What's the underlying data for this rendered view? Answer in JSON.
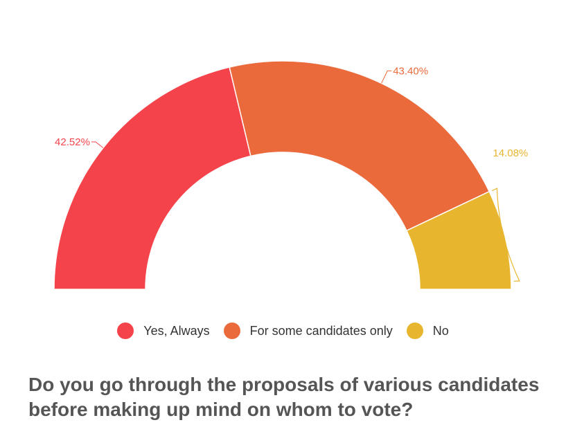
{
  "chart_data": {
    "type": "pie",
    "variant": "semi-donut",
    "title": "Do you go through the proposals of various candidates before making up mind on whom to vote?",
    "categories": [
      "Yes, Always",
      "For some candidates only",
      "No"
    ],
    "values": [
      42.52,
      43.4,
      14.08
    ],
    "value_labels": [
      "42.52%",
      "43.40%",
      "14.08%"
    ],
    "colors": [
      "#f5434b",
      "#ea6a3c",
      "#e8b52f"
    ],
    "legend_position": "bottom-center"
  }
}
